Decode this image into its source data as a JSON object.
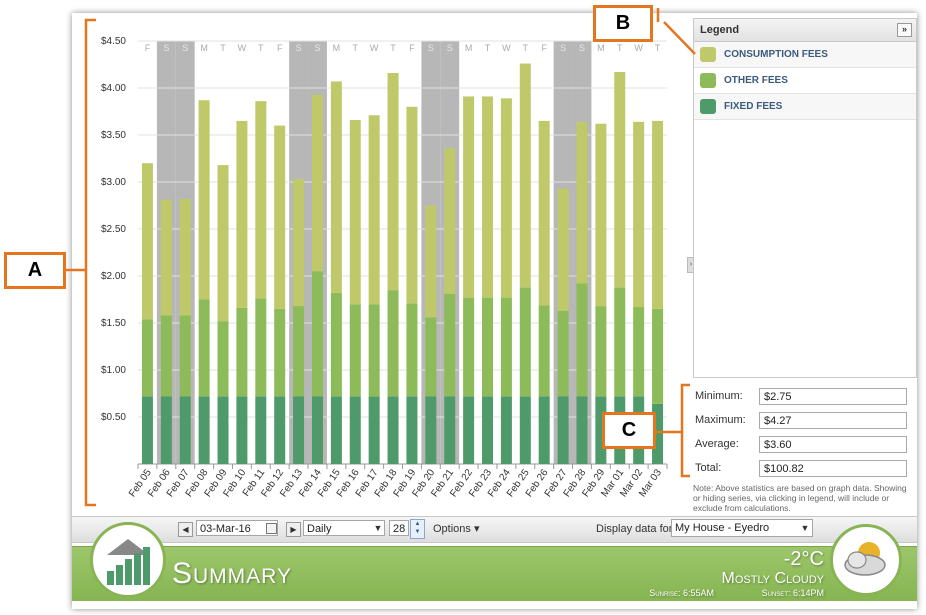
{
  "chart_data": {
    "type": "bar",
    "stacked": true,
    "categories": [
      "Feb 05",
      "Feb 06",
      "Feb 07",
      "Feb 08",
      "Feb 09",
      "Feb 10",
      "Feb 11",
      "Feb 12",
      "Feb 13",
      "Feb 14",
      "Feb 15",
      "Feb 16",
      "Feb 17",
      "Feb 18",
      "Feb 19",
      "Feb 20",
      "Feb 21",
      "Feb 22",
      "Feb 23",
      "Feb 24",
      "Feb 25",
      "Feb 26",
      "Feb 27",
      "Feb 28",
      "Feb 29",
      "Mar 01",
      "Mar 02",
      "Mar 03"
    ],
    "day_letters": [
      "F",
      "S",
      "S",
      "M",
      "T",
      "W",
      "T",
      "F",
      "S",
      "S",
      "M",
      "T",
      "W",
      "T",
      "F",
      "S",
      "S",
      "M",
      "T",
      "W",
      "T",
      "F",
      "S",
      "S",
      "M",
      "T",
      "W",
      "T"
    ],
    "weekend": [
      false,
      true,
      true,
      false,
      false,
      false,
      false,
      false,
      true,
      true,
      false,
      false,
      false,
      false,
      false,
      true,
      true,
      false,
      false,
      false,
      false,
      false,
      true,
      true,
      false,
      false,
      false,
      false
    ],
    "series": [
      {
        "name": "FIXED FEES",
        "color": "#4e9a6a",
        "values": [
          0.72,
          0.72,
          0.72,
          0.72,
          0.72,
          0.72,
          0.72,
          0.72,
          0.72,
          0.72,
          0.72,
          0.72,
          0.72,
          0.72,
          0.72,
          0.72,
          0.72,
          0.72,
          0.72,
          0.72,
          0.72,
          0.72,
          0.72,
          0.72,
          0.72,
          0.72,
          0.72,
          0.64
        ]
      },
      {
        "name": "OTHER FEES",
        "color": "#8dbb5a",
        "values": [
          0.82,
          0.86,
          0.86,
          1.03,
          0.8,
          0.94,
          1.04,
          0.93,
          0.96,
          1.33,
          1.1,
          0.98,
          0.98,
          1.13,
          0.99,
          0.84,
          1.09,
          1.05,
          1.05,
          1.05,
          1.16,
          0.97,
          0.91,
          1.2,
          0.96,
          1.16,
          0.95,
          1.01
        ]
      },
      {
        "name": "CONSUMPTION FEES",
        "color": "#bfc96a",
        "values": [
          1.66,
          1.23,
          1.24,
          2.12,
          1.66,
          1.99,
          2.1,
          1.95,
          1.35,
          1.88,
          2.25,
          1.96,
          2.01,
          2.31,
          2.09,
          1.19,
          1.55,
          2.14,
          2.14,
          2.12,
          2.38,
          1.96,
          1.3,
          1.72,
          1.94,
          2.29,
          1.97,
          2.0
        ]
      }
    ],
    "y_ticks": [
      "$0.50",
      "$1.00",
      "$1.50",
      "$2.00",
      "$2.50",
      "$3.00",
      "$3.50",
      "$4.00",
      "$4.50"
    ],
    "y_tick_values": [
      0.5,
      1,
      1.5,
      2,
      2.5,
      3,
      3.5,
      4,
      4.5
    ],
    "ylim": [
      0,
      4.5
    ],
    "weekend_shade_color": "#b7b7b7",
    "legend_position": "right"
  },
  "legend": {
    "title": "Legend",
    "toggle": "»",
    "items": [
      {
        "label": "CONSUMPTION FEES",
        "color": "#bfc96a"
      },
      {
        "label": "OTHER FEES",
        "color": "#8dbb5a"
      },
      {
        "label": "FIXED FEES",
        "color": "#4e9a6a"
      }
    ]
  },
  "stats": {
    "minimum_label": "Minimum:",
    "minimum": "$2.75",
    "maximum_label": "Maximum:",
    "maximum": "$4.27",
    "average_label": "Average:",
    "average": "$3.60",
    "total_label": "Total:",
    "total": "$100.82",
    "note": "Note: Above statistics are based on graph data. Showing or hiding series, via clicking in legend, will include or exclude from calculations."
  },
  "annotations": {
    "a": "A",
    "b": "B",
    "c": "C"
  },
  "toolbar": {
    "date": "03-Mar-16",
    "period": "Daily",
    "count": "28",
    "options": "Options ▾",
    "display_label": "Display data for:",
    "location": "My House - Eyedro"
  },
  "footer": {
    "title": "Summary",
    "temperature": "-2°C",
    "condition": "Mostly Cloudy",
    "sunrise": "Sunrise: 6:55AM",
    "sunset": "Sunset: 6:14PM"
  }
}
